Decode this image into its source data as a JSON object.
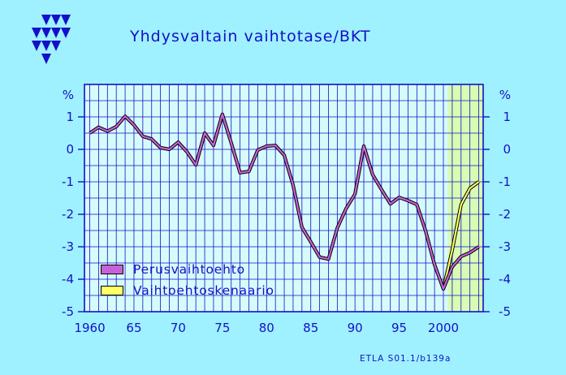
{
  "title": "Yhdysvaltain  vaihtotase/BKT",
  "source": "ETLA S01.1/b139a",
  "colors": {
    "background": "#9ff1ff",
    "plot_background": "#d6fbfb",
    "forecast_shade": "#d8fcb4",
    "text": "#1410c8",
    "base_series": "#c861d9",
    "scenario_series": "#ffff66",
    "logo": "#1410c8"
  },
  "legend": {
    "base_label": "Perusvaihtoehto",
    "scenario_label": "Vaihtoehtoskenaario"
  },
  "chart_data": {
    "type": "line",
    "title": "Yhdysvaltain  vaihtotase/BKT",
    "ylabel_left": "%",
    "ylabel_right": "%",
    "ylim": [
      -5,
      2
    ],
    "xlim": [
      1959.4,
      2004.5
    ],
    "yticks": [
      1,
      0,
      -1,
      -2,
      -3,
      -4,
      -5
    ],
    "xtick_labels": [
      {
        "x": 1960,
        "label": "1960"
      },
      {
        "x": 1965,
        "label": "65"
      },
      {
        "x": 1970,
        "label": "70"
      },
      {
        "x": 1975,
        "label": "75"
      },
      {
        "x": 1980,
        "label": "80"
      },
      {
        "x": 1985,
        "label": "85"
      },
      {
        "x": 1990,
        "label": "90"
      },
      {
        "x": 1995,
        "label": "95"
      },
      {
        "x": 2000,
        "label": "2000"
      }
    ],
    "forecast_start": 2000.5,
    "grid": true,
    "legend_position": "bottom-left",
    "series": [
      {
        "name": "Perusvaihtoehto",
        "points": [
          [
            1960,
            0.5
          ],
          [
            1961,
            0.68
          ],
          [
            1962,
            0.56
          ],
          [
            1963,
            0.7
          ],
          [
            1964,
            1.02
          ],
          [
            1965,
            0.75
          ],
          [
            1966,
            0.4
          ],
          [
            1967,
            0.32
          ],
          [
            1968,
            0.05
          ],
          [
            1969,
            0.0
          ],
          [
            1970,
            0.22
          ],
          [
            1971,
            -0.08
          ],
          [
            1972,
            -0.48
          ],
          [
            1973,
            0.5
          ],
          [
            1974,
            0.12
          ],
          [
            1975,
            1.08
          ],
          [
            1976,
            0.2
          ],
          [
            1977,
            -0.72
          ],
          [
            1978,
            -0.68
          ],
          [
            1979,
            -0.02
          ],
          [
            1980,
            0.1
          ],
          [
            1981,
            0.12
          ],
          [
            1982,
            -0.18
          ],
          [
            1983,
            -1.1
          ],
          [
            1984,
            -2.4
          ],
          [
            1985,
            -2.85
          ],
          [
            1986,
            -3.32
          ],
          [
            1987,
            -3.38
          ],
          [
            1988,
            -2.42
          ],
          [
            1989,
            -1.82
          ],
          [
            1990,
            -1.38
          ],
          [
            1991,
            0.1
          ],
          [
            1992,
            -0.78
          ],
          [
            1993,
            -1.24
          ],
          [
            1994,
            -1.68
          ],
          [
            1995,
            -1.48
          ],
          [
            1996,
            -1.58
          ],
          [
            1997,
            -1.7
          ],
          [
            1998,
            -2.52
          ],
          [
            1999,
            -3.55
          ],
          [
            2000,
            -4.3
          ],
          [
            2001,
            -3.62
          ],
          [
            2002,
            -3.3
          ],
          [
            2003,
            -3.18
          ],
          [
            2004,
            -3.0
          ]
        ]
      },
      {
        "name": "Vaihtoehtoskenaario",
        "points": [
          [
            2000,
            -4.3
          ],
          [
            2001,
            -3.1
          ],
          [
            2002,
            -1.7
          ],
          [
            2003,
            -1.2
          ],
          [
            2004,
            -1.0
          ]
        ]
      }
    ]
  }
}
